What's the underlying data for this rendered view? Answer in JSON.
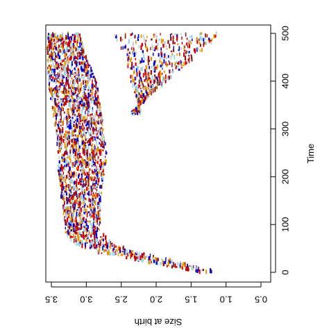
{
  "chart_data": {
    "type": "scatter",
    "orientation": "rotated-90",
    "xlabel": "Time",
    "ylabel": "Size at birth",
    "xlim": [
      -20,
      520
    ],
    "ylim": [
      0.5,
      3.6
    ],
    "x_ticks": [
      0,
      100,
      200,
      300,
      400,
      500
    ],
    "y_ticks": [
      3.5,
      3.0,
      2.5,
      2.0,
      1.5,
      1.0,
      0.5
    ],
    "x_tick_labels": [
      "0",
      "100",
      "200",
      "300",
      "400",
      "500"
    ],
    "y_tick_labels": [
      "3.5",
      "3.0",
      "2.5",
      "2.0",
      "1.5",
      "1.0",
      "0.5"
    ],
    "grid": false,
    "legend": "none",
    "colors": [
      "#0000cc",
      "#cc0000",
      "#8b1a1a",
      "#e69500",
      "#9ad4e8",
      "#c9c9c9"
    ],
    "envelope": {
      "time": [
        0,
        5,
        10,
        20,
        30,
        40,
        50,
        60,
        70,
        80,
        100,
        150,
        200,
        250,
        300,
        350,
        400,
        450,
        500
      ],
      "lower": [
        1.1,
        1.25,
        1.4,
        1.65,
        1.9,
        2.2,
        2.45,
        2.6,
        2.7,
        2.75,
        2.8,
        2.8,
        2.75,
        2.7,
        2.75,
        2.8,
        2.85,
        3.0,
        3.1
      ],
      "upper": [
        1.35,
        1.55,
        1.75,
        2.1,
        2.45,
        2.8,
        3.0,
        3.15,
        3.25,
        3.3,
        3.3,
        3.35,
        3.4,
        3.4,
        3.45,
        3.5,
        3.55,
        3.6,
        3.6
      ]
    },
    "branch": {
      "time_start": 330,
      "time_end": 500,
      "lower_start": 2.4,
      "lower_end": 1.05,
      "upper_start": 2.2,
      "upper_end": 2.6
    }
  }
}
